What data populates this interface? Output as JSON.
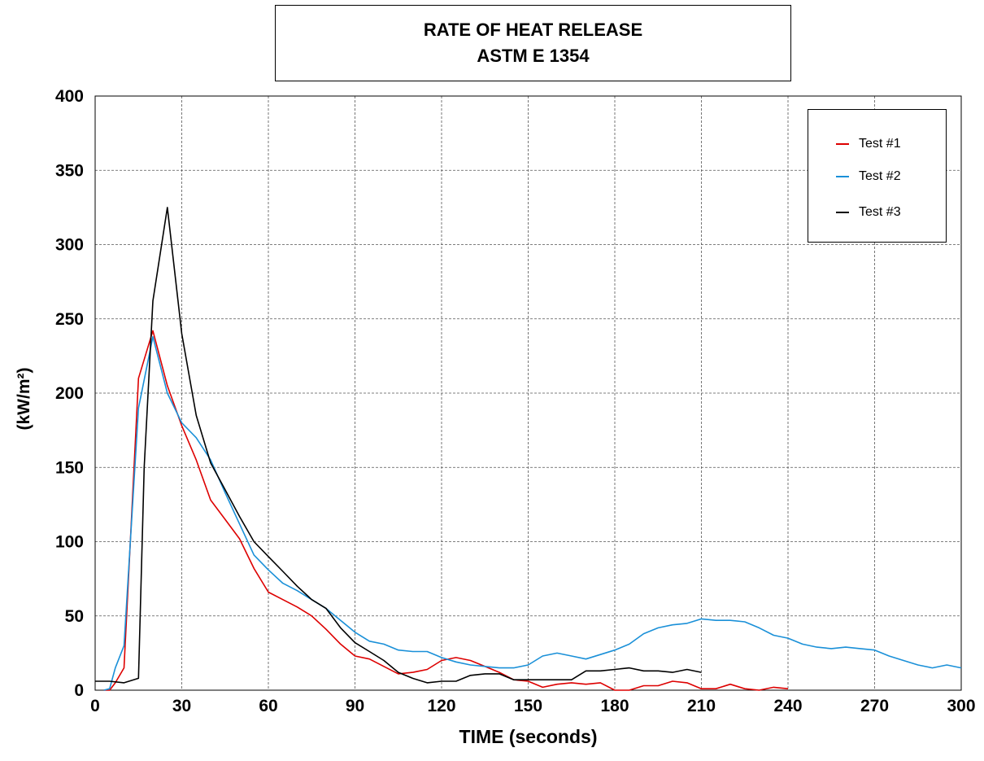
{
  "chart_data": {
    "type": "line",
    "title": "RATE OF HEAT RELEASE",
    "subtitle": "ASTM E 1354",
    "xlabel": "TIME (seconds)",
    "ylabel": "(kW/m²)",
    "xlim": [
      0,
      300
    ],
    "ylim": [
      0,
      400
    ],
    "xticks": [
      0,
      30,
      60,
      90,
      120,
      150,
      180,
      210,
      240,
      270,
      300
    ],
    "yticks": [
      0,
      50,
      100,
      150,
      200,
      250,
      300,
      350,
      400
    ],
    "grid": true,
    "legend_position": "top-right",
    "series": [
      {
        "name": "Test #1",
        "color": "#dd0000",
        "x": [
          3,
          5,
          7,
          10,
          15,
          20,
          25,
          30,
          35,
          40,
          45,
          50,
          55,
          60,
          65,
          70,
          75,
          80,
          85,
          90,
          95,
          100,
          105,
          110,
          115,
          120,
          125,
          130,
          135,
          140,
          145,
          150,
          155,
          160,
          165,
          170,
          175,
          180,
          185,
          190,
          195,
          200,
          205,
          210,
          215,
          220,
          225,
          230,
          235,
          240
        ],
        "y": [
          0,
          0,
          5,
          15,
          210,
          242,
          205,
          178,
          155,
          128,
          115,
          102,
          82,
          66,
          61,
          56,
          50,
          41,
          31,
          23,
          21,
          16,
          11,
          12,
          14,
          20,
          22,
          20,
          16,
          12,
          7,
          6,
          2,
          4,
          5,
          4,
          5,
          0,
          0,
          3,
          3,
          6,
          5,
          1,
          1,
          4,
          1,
          0,
          2,
          1
        ]
      },
      {
        "name": "Test #2",
        "color": "#1a90d8",
        "x": [
          3,
          5,
          7,
          10,
          15,
          20,
          25,
          30,
          35,
          40,
          45,
          50,
          55,
          60,
          65,
          70,
          75,
          80,
          85,
          90,
          95,
          100,
          105,
          110,
          115,
          120,
          125,
          130,
          135,
          140,
          145,
          150,
          155,
          160,
          165,
          170,
          175,
          180,
          185,
          190,
          195,
          200,
          205,
          210,
          215,
          220,
          225,
          230,
          235,
          240,
          245,
          250,
          255,
          260,
          265,
          270,
          275,
          280,
          285,
          290,
          295,
          300
        ],
        "y": [
          0,
          1,
          15,
          30,
          190,
          238,
          200,
          180,
          170,
          155,
          133,
          112,
          91,
          81,
          72,
          67,
          61,
          55,
          47,
          39,
          33,
          31,
          27,
          26,
          26,
          22,
          19,
          17,
          16,
          15,
          15,
          17,
          23,
          25,
          23,
          21,
          24,
          27,
          31,
          38,
          42,
          44,
          45,
          48,
          47,
          47,
          46,
          42,
          37,
          35,
          31,
          29,
          28,
          29,
          28,
          27,
          23,
          20,
          17,
          15,
          17,
          15
        ]
      },
      {
        "name": "Test #3",
        "color": "#000000",
        "x": [
          0,
          5,
          10,
          15,
          17,
          20,
          25,
          30,
          35,
          40,
          45,
          50,
          55,
          60,
          65,
          70,
          75,
          80,
          85,
          90,
          95,
          100,
          105,
          110,
          115,
          120,
          125,
          130,
          135,
          140,
          145,
          150,
          155,
          160,
          165,
          170,
          175,
          180,
          185,
          190,
          195,
          200,
          205,
          210
        ],
        "y": [
          6,
          6,
          5,
          8,
          150,
          262,
          325,
          240,
          185,
          153,
          135,
          117,
          100,
          90,
          80,
          70,
          61,
          55,
          42,
          32,
          26,
          20,
          12,
          8,
          5,
          6,
          6,
          10,
          11,
          11,
          7,
          7,
          7,
          7,
          7,
          13,
          13,
          14,
          15,
          13,
          13,
          12,
          14,
          12
        ]
      }
    ]
  }
}
